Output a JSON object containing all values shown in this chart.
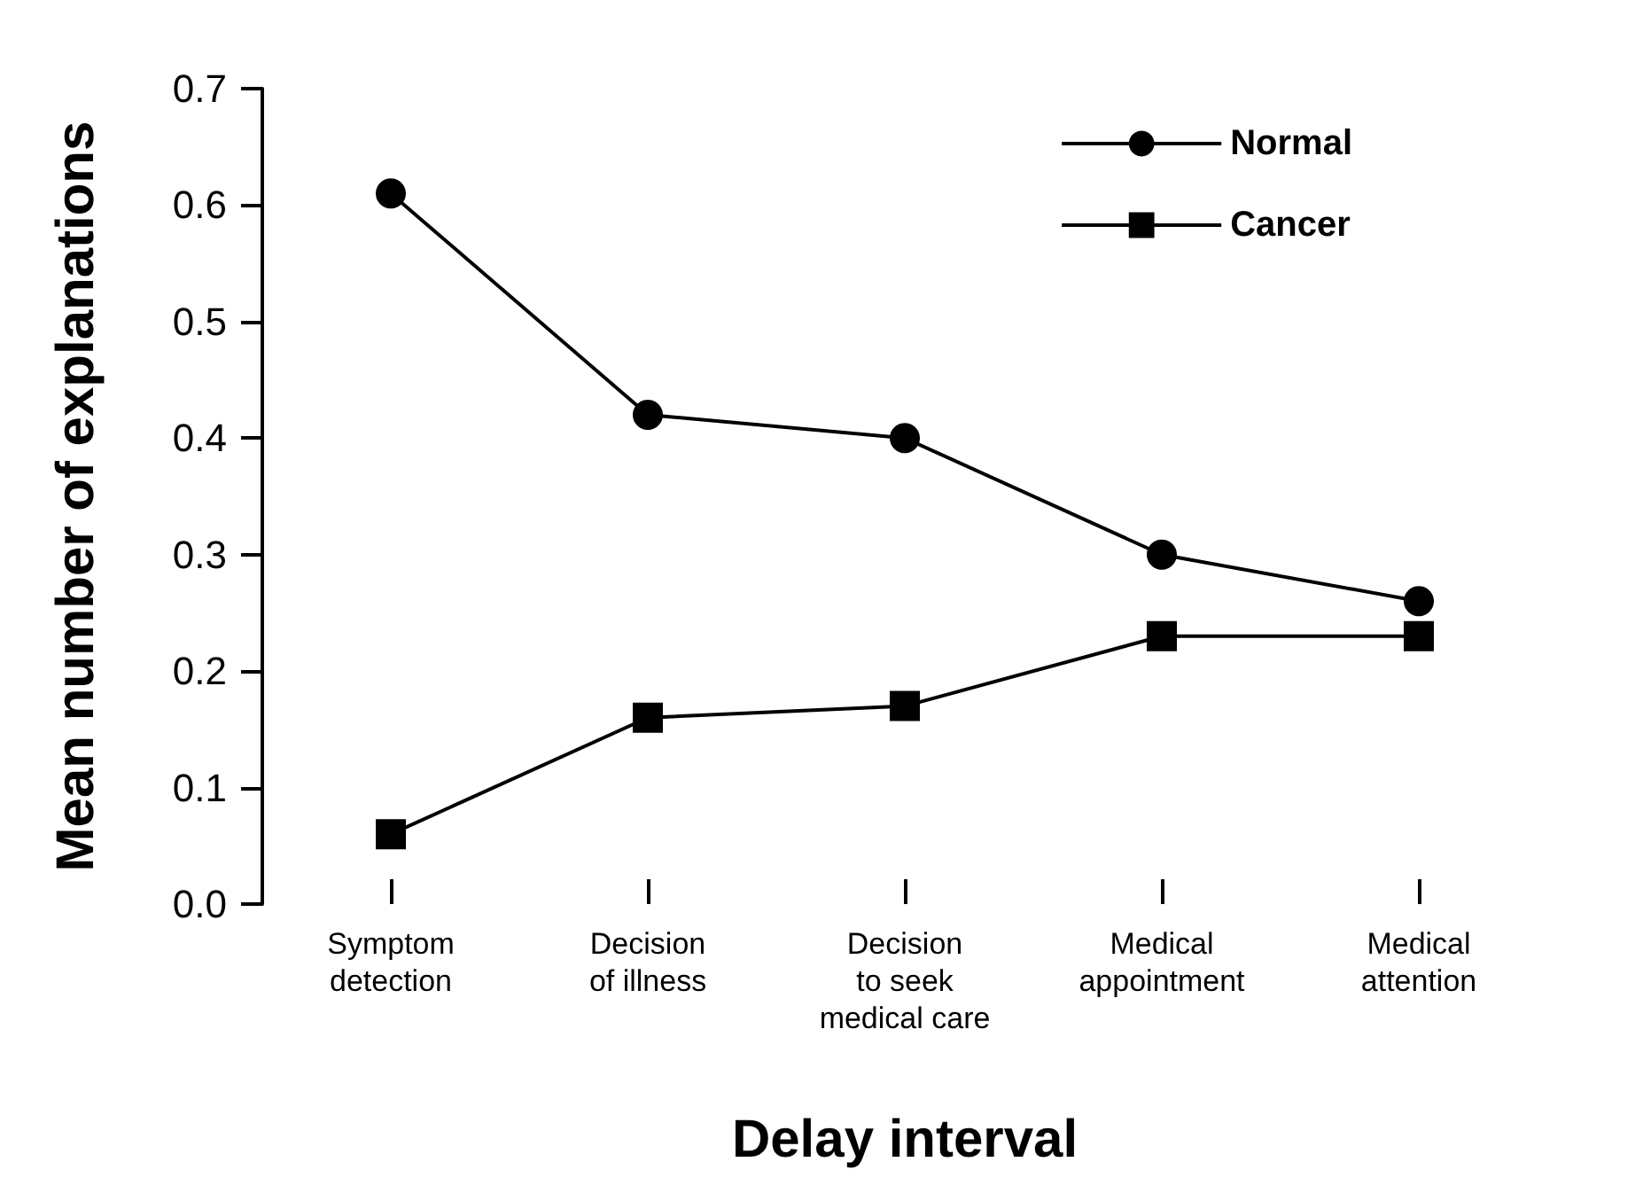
{
  "chart_data": {
    "type": "line",
    "xlabel": "Delay interval",
    "ylabel": "Mean number of explanations",
    "categories": [
      "Symptom\ndetection",
      "Decision\nof illness",
      "Decision\nto seek\nmedical care",
      "Medical\nappointment",
      "Medical\nattention"
    ],
    "series": [
      {
        "name": "Normal",
        "color": "#000000",
        "marker": "circle",
        "values": [
          0.61,
          0.42,
          0.4,
          0.3,
          0.26
        ]
      },
      {
        "name": "Cancer",
        "color": "#000000",
        "marker": "square",
        "values": [
          0.06,
          0.16,
          0.17,
          0.23,
          0.23
        ]
      }
    ],
    "ylim": [
      0,
      0.7
    ],
    "yticks": [
      {
        "value": 0,
        "label": "0.0"
      },
      0.1,
      0.2,
      0.3,
      0.4,
      0.5,
      0.6,
      0.7
    ],
    "grid": false,
    "legend": "top right",
    "line_style": "solid"
  }
}
